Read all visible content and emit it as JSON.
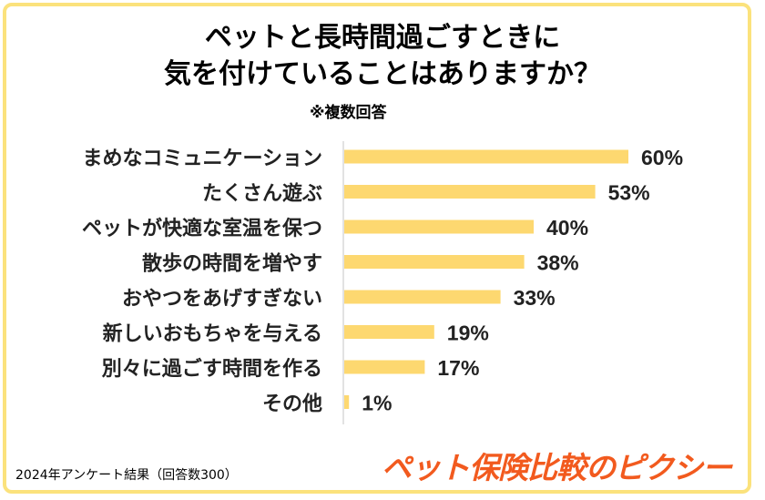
{
  "title_line1": "ペットと長時間過ごすときに",
  "title_line2": "気を付けていることはありますか？",
  "subtitle": "※複数回答",
  "footnote": "2024年アンケート結果（回答数300）",
  "brand": "ペット保険比較のピクシー",
  "colors": {
    "bar": "#fdd870",
    "frame": "#fbe27c",
    "brand": "#f25a1e",
    "axis": "#d9d9d9"
  },
  "chart_data": {
    "type": "bar",
    "orientation": "horizontal",
    "categories": [
      "まめなコミュニケーション",
      "たくさん遊ぶ",
      "ペットが快適な室温を保つ",
      "散歩の時間を増やす",
      "おやつをあげすぎない",
      "新しいおもちゃを与える",
      "別々に過ごす時間を作る",
      "その他"
    ],
    "values": [
      60,
      53,
      40,
      38,
      33,
      19,
      17,
      1
    ],
    "value_labels": [
      "60%",
      "53%",
      "40%",
      "38%",
      "33%",
      "19%",
      "17%",
      "1%"
    ],
    "xlim": [
      0,
      100
    ],
    "grid": false,
    "legend": "none"
  }
}
